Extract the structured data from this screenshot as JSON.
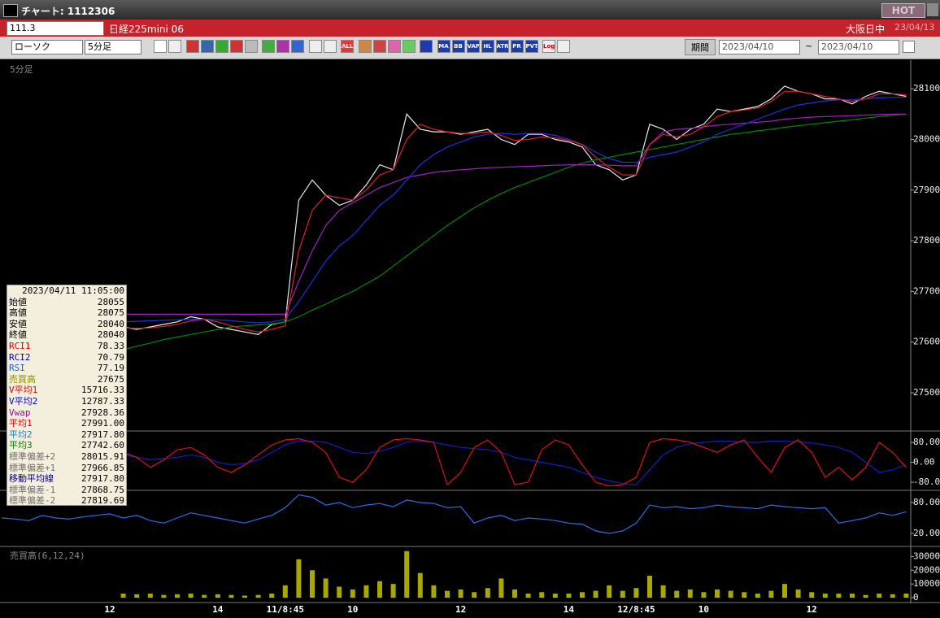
{
  "window": {
    "title": "チャート: 1112306",
    "hot": "HOT"
  },
  "header": {
    "code": "111.3",
    "name": "日経225mini 06",
    "session": "大阪日中",
    "date": "23/04/13"
  },
  "toolbar": {
    "chart_kind": "ローソク",
    "interval": "5分足",
    "icons": [
      "ALL",
      "MA",
      "BB",
      "VAP",
      "HL",
      "ATR",
      "PR",
      "PVT",
      "Log"
    ],
    "period_button": "期間",
    "from": "2023/04/10",
    "tilde": "~",
    "to": "2023/04/10"
  },
  "info_panel": {
    "datetime": "2023/04/11  11:05:00",
    "rows": [
      {
        "label": "始値",
        "value": "28055",
        "color": "#000000"
      },
      {
        "label": "高値",
        "value": "28075",
        "color": "#000000"
      },
      {
        "label": "安値",
        "value": "28040",
        "color": "#000000"
      },
      {
        "label": "終値",
        "value": "28040",
        "color": "#000000"
      },
      {
        "label": "RCI1",
        "value": "78.33",
        "color": "#e00000"
      },
      {
        "label": "RCI2",
        "value": "70.79",
        "color": "#0000e0"
      },
      {
        "label": "RSI",
        "value": "77.19",
        "color": "#2060d0"
      },
      {
        "label": "売買高",
        "value": "27675",
        "color": "#909000"
      },
      {
        "label": "V平均1",
        "value": "15716.33",
        "color": "#e00000"
      },
      {
        "label": "V平均2",
        "value": "12787.33",
        "color": "#0000e0"
      },
      {
        "label": "Vwap",
        "value": "27928.36",
        "color": "#a000a0"
      },
      {
        "label": "平均1",
        "value": "27991.00",
        "color": "#e00000"
      },
      {
        "label": "平均2",
        "value": "27917.80",
        "color": "#2080c0"
      },
      {
        "label": "平均3",
        "value": "27742.60",
        "color": "#008000"
      },
      {
        "label": "標準偏差+2",
        "value": "28015.91",
        "color": "#707070"
      },
      {
        "label": "標準偏差+1",
        "value": "27966.85",
        "color": "#707070"
      },
      {
        "label": "移動平均線",
        "value": "27917.80",
        "color": "#000090"
      },
      {
        "label": "標準偏差-1",
        "value": "27868.75",
        "color": "#707070"
      },
      {
        "label": "標準偏差-2",
        "value": "27819.69",
        "color": "#707070"
      }
    ]
  },
  "chart_data": [
    {
      "type": "line",
      "title": "5分足",
      "ylim": [
        27430,
        28150
      ],
      "yticks": [
        27500,
        27600,
        27700,
        27800,
        27900,
        28000,
        28100
      ],
      "series": [
        {
          "color": "#e8e8e8",
          "values": [
            null,
            null,
            null,
            null,
            null,
            null,
            null,
            null,
            null,
            27630,
            27625,
            27630,
            27635,
            27640,
            27650,
            27645,
            27630,
            27625,
            27620,
            27615,
            27635,
            27640,
            27880,
            27920,
            27890,
            27870,
            27880,
            27910,
            27950,
            27940,
            28050,
            28020,
            28015,
            28015,
            28010,
            28015,
            28020,
            28000,
            27990,
            28010,
            28010,
            28000,
            27995,
            27985,
            27950,
            27940,
            27920,
            27930,
            28030,
            28020,
            28000,
            28020,
            28030,
            28060,
            28055,
            28060,
            28065,
            28080,
            28105,
            28095,
            28090,
            28080,
            28080,
            28070,
            28085,
            28095,
            28090,
            28085
          ]
        },
        {
          "color": "#008a00",
          "values": [
            null,
            null,
            null,
            null,
            null,
            null,
            null,
            null,
            null,
            27585,
            27592,
            27598,
            27605,
            27610,
            27615,
            27620,
            27625,
            27630,
            27632,
            27634,
            27636,
            27640,
            27650,
            27663,
            27675,
            27688,
            27700,
            27715,
            27730,
            27750,
            27770,
            27790,
            27810,
            27830,
            27848,
            27865,
            27880,
            27893,
            27905,
            27915,
            27925,
            27935,
            27945,
            27953,
            27960,
            27965,
            27970,
            27975,
            27980,
            27985,
            27990,
            27995,
            28000,
            28005,
            28010,
            28013,
            28017,
            28020,
            28024,
            28027,
            28030,
            28033,
            28036,
            28039,
            28042,
            28045,
            28048,
            28050
          ]
        },
        {
          "color": "#a020c0",
          "values": [
            null,
            null,
            null,
            null,
            null,
            null,
            null,
            null,
            null,
            27655,
            27655,
            27655,
            27655,
            27655,
            27655,
            27655,
            27655,
            27655,
            27655,
            27655,
            27655,
            27655,
            27720,
            27780,
            27830,
            27860,
            27875,
            27890,
            27905,
            27915,
            27925,
            27930,
            27935,
            27938,
            27940,
            27942,
            27944,
            27945,
            27946,
            27947,
            27948,
            27949,
            27950,
            27950,
            27950,
            27949,
            27948,
            27948,
            27990,
            28015,
            28020,
            28022,
            28025,
            28028,
            28030,
            28032,
            28034,
            28036,
            28040,
            28042,
            28044,
            28045,
            28046,
            28047,
            28048,
            28049,
            28050,
            28050
          ]
        },
        {
          "color": "#2030e0",
          "values": [
            null,
            null,
            null,
            null,
            null,
            null,
            null,
            null,
            null,
            27640,
            27641,
            27642,
            27643,
            27644,
            27645,
            27645,
            27644,
            27642,
            27640,
            27638,
            27640,
            27645,
            27680,
            27720,
            27760,
            27790,
            27810,
            27840,
            27870,
            27890,
            27920,
            27950,
            27970,
            27985,
            27995,
            28005,
            28010,
            28012,
            28010,
            28012,
            28012,
            28008,
            28000,
            27990,
            27975,
            27962,
            27955,
            27955,
            27965,
            27970,
            27975,
            27985,
            27995,
            28010,
            28020,
            28030,
            28040,
            28050,
            28060,
            28068,
            28072,
            28076,
            28078,
            28078,
            28080,
            28082,
            28083,
            28083
          ]
        },
        {
          "color": "#e02020",
          "values": [
            null,
            null,
            null,
            null,
            null,
            null,
            null,
            null,
            null,
            27628,
            27627,
            27628,
            27631,
            27635,
            27642,
            27645,
            27640,
            27632,
            27625,
            27620,
            27625,
            27632,
            27780,
            27860,
            27890,
            27885,
            27880,
            27900,
            27930,
            27940,
            28000,
            28030,
            28020,
            28015,
            28012,
            28012,
            28015,
            28008,
            27998,
            28000,
            28005,
            28003,
            27998,
            27990,
            27965,
            27945,
            27930,
            27930,
            27990,
            28010,
            28005,
            28010,
            28025,
            28045,
            28055,
            28058,
            28062,
            28075,
            28095,
            28095,
            28090,
            28085,
            28080,
            28075,
            28080,
            28090,
            28090,
            28088
          ]
        }
      ]
    },
    {
      "type": "line",
      "ylim": [
        -110,
        120
      ],
      "yticks": [
        {
          "value": 80,
          "label": "80.00"
        },
        {
          "value": 0,
          "label": "0.00"
        },
        {
          "value": -80,
          "label": "-80.00"
        }
      ],
      "series": [
        {
          "color": "#1020c0",
          "values": [
            null,
            null,
            null,
            null,
            null,
            null,
            null,
            null,
            null,
            30,
            20,
            10,
            15,
            20,
            30,
            20,
            0,
            -10,
            -5,
            10,
            40,
            70,
            85,
            85,
            80,
            60,
            40,
            35,
            45,
            60,
            80,
            85,
            80,
            70,
            60,
            55,
            50,
            40,
            20,
            10,
            0,
            -10,
            -20,
            -40,
            -60,
            -75,
            -85,
            -90,
            -30,
            30,
            60,
            75,
            80,
            85,
            85,
            80,
            80,
            85,
            85,
            82,
            78,
            70,
            60,
            40,
            0,
            -40,
            -30,
            -10
          ]
        },
        {
          "color": "#e01010",
          "values": [
            null,
            null,
            null,
            null,
            null,
            null,
            null,
            null,
            null,
            40,
            20,
            -20,
            10,
            50,
            60,
            30,
            -20,
            -40,
            -10,
            30,
            70,
            90,
            95,
            80,
            40,
            -60,
            -80,
            -30,
            60,
            90,
            95,
            90,
            80,
            -90,
            -40,
            60,
            90,
            40,
            -90,
            -80,
            50,
            90,
            70,
            -10,
            -80,
            -95,
            -90,
            -60,
            80,
            95,
            90,
            80,
            60,
            40,
            70,
            90,
            20,
            -40,
            60,
            90,
            40,
            -60,
            -20,
            -70,
            -20,
            80,
            40,
            -20
          ]
        }
      ]
    },
    {
      "type": "line",
      "ylim": [
        0,
        100
      ],
      "yticks": [
        {
          "value": 80,
          "label": "80.00"
        },
        {
          "value": 20,
          "label": "20.00"
        }
      ],
      "series": [
        {
          "color": "#2a6ee8",
          "values": [
            50,
            48,
            45,
            55,
            50,
            48,
            52,
            55,
            58,
            50,
            55,
            45,
            40,
            50,
            60,
            55,
            50,
            45,
            40,
            48,
            55,
            70,
            95,
            90,
            75,
            80,
            70,
            75,
            78,
            72,
            85,
            80,
            78,
            70,
            72,
            40,
            50,
            55,
            45,
            50,
            48,
            45,
            40,
            38,
            25,
            20,
            25,
            40,
            75,
            70,
            72,
            68,
            70,
            75,
            72,
            70,
            68,
            75,
            72,
            70,
            68,
            70,
            40,
            45,
            50,
            60,
            55,
            62
          ]
        }
      ]
    },
    {
      "type": "bar",
      "title": "売買高(6,12,24)",
      "color": "#a8a800",
      "ylim": [
        0,
        35000
      ],
      "yticks": [
        0,
        10000,
        20000,
        30000
      ],
      "categories": [
        null,
        null,
        null,
        null,
        null,
        null,
        null,
        null,
        "12",
        null,
        null,
        null,
        null,
        null,
        null,
        null,
        "14",
        null,
        null,
        null,
        null,
        "11/8:45",
        null,
        null,
        null,
        null,
        "10",
        null,
        null,
        null,
        null,
        null,
        null,
        null,
        "12",
        null,
        null,
        null,
        null,
        null,
        null,
        null,
        "14",
        null,
        null,
        null,
        null,
        "12/8:45",
        null,
        null,
        null,
        null,
        "10",
        null,
        null,
        null,
        null,
        null,
        null,
        null,
        "12",
        null,
        null,
        null,
        null,
        null,
        null,
        null
      ],
      "values": [
        null,
        null,
        null,
        null,
        null,
        null,
        null,
        null,
        null,
        3000,
        2500,
        3000,
        2000,
        2500,
        3000,
        2000,
        2500,
        2000,
        1500,
        2000,
        3000,
        9000,
        28000,
        20000,
        14000,
        8000,
        6000,
        9000,
        12000,
        10000,
        34000,
        18000,
        9000,
        5000,
        6000,
        4000,
        7000,
        14000,
        6000,
        3000,
        4000,
        3000,
        3000,
        4000,
        5000,
        9000,
        5000,
        7000,
        16000,
        9000,
        5000,
        6000,
        4000,
        6000,
        5000,
        4000,
        3000,
        5000,
        10000,
        6000,
        4000,
        3000,
        3000,
        3000,
        2000,
        3000,
        2500,
        3000
      ]
    }
  ]
}
